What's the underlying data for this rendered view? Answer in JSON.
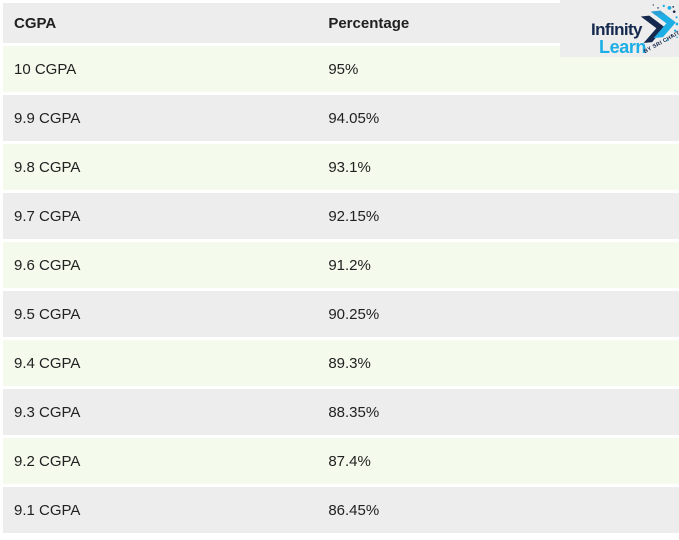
{
  "colors": {
    "page_bg": "#ffffff",
    "header_bg": "#ededed",
    "row_green": "#f4faec",
    "row_gray": "#ededed",
    "text_color": "#212121",
    "logo_navy": "#14294d",
    "logo_cyan": "#1caee4"
  },
  "table": {
    "columns": [
      "CGPA",
      "Percentage"
    ],
    "rows": [
      {
        "cgpa": "10 CGPA",
        "percentage": "95%"
      },
      {
        "cgpa": "9.9 CGPA",
        "percentage": "94.05%"
      },
      {
        "cgpa": "9.8 CGPA",
        "percentage": "93.1%"
      },
      {
        "cgpa": "9.7 CGPA",
        "percentage": "92.15%"
      },
      {
        "cgpa": "9.6 CGPA",
        "percentage": "91.2%"
      },
      {
        "cgpa": "9.5 CGPA",
        "percentage": "90.25%"
      },
      {
        "cgpa": "9.4 CGPA",
        "percentage": "89.3%"
      },
      {
        "cgpa": "9.3 CGPA",
        "percentage": "88.35%"
      },
      {
        "cgpa": "9.2 CGPA",
        "percentage": "87.4%"
      },
      {
        "cgpa": "9.1 CGPA",
        "percentage": "86.45%"
      }
    ]
  },
  "logo": {
    "word1": "Infinity",
    "word2": "Learn",
    "tagline": "BY SRI CHAITANYA"
  },
  "chart_data": {
    "type": "table",
    "title": "",
    "columns": [
      "CGPA",
      "Percentage"
    ],
    "rows": [
      [
        "10 CGPA",
        "95%"
      ],
      [
        "9.9 CGPA",
        "94.05%"
      ],
      [
        "9.8 CGPA",
        "93.1%"
      ],
      [
        "9.7 CGPA",
        "92.15%"
      ],
      [
        "9.6 CGPA",
        "91.2%"
      ],
      [
        "9.5 CGPA",
        "90.25%"
      ],
      [
        "9.4 CGPA",
        "89.3%"
      ],
      [
        "9.3 CGPA",
        "88.35%"
      ],
      [
        "9.2 CGPA",
        "87.4%"
      ],
      [
        "9.1 CGPA",
        "86.45%"
      ]
    ],
    "cgpa_values": [
      10,
      9.9,
      9.8,
      9.7,
      9.6,
      9.5,
      9.4,
      9.3,
      9.2,
      9.1
    ],
    "percentage_values": [
      95,
      94.05,
      93.1,
      92.15,
      91.2,
      90.25,
      89.3,
      88.35,
      87.4,
      86.45
    ]
  }
}
